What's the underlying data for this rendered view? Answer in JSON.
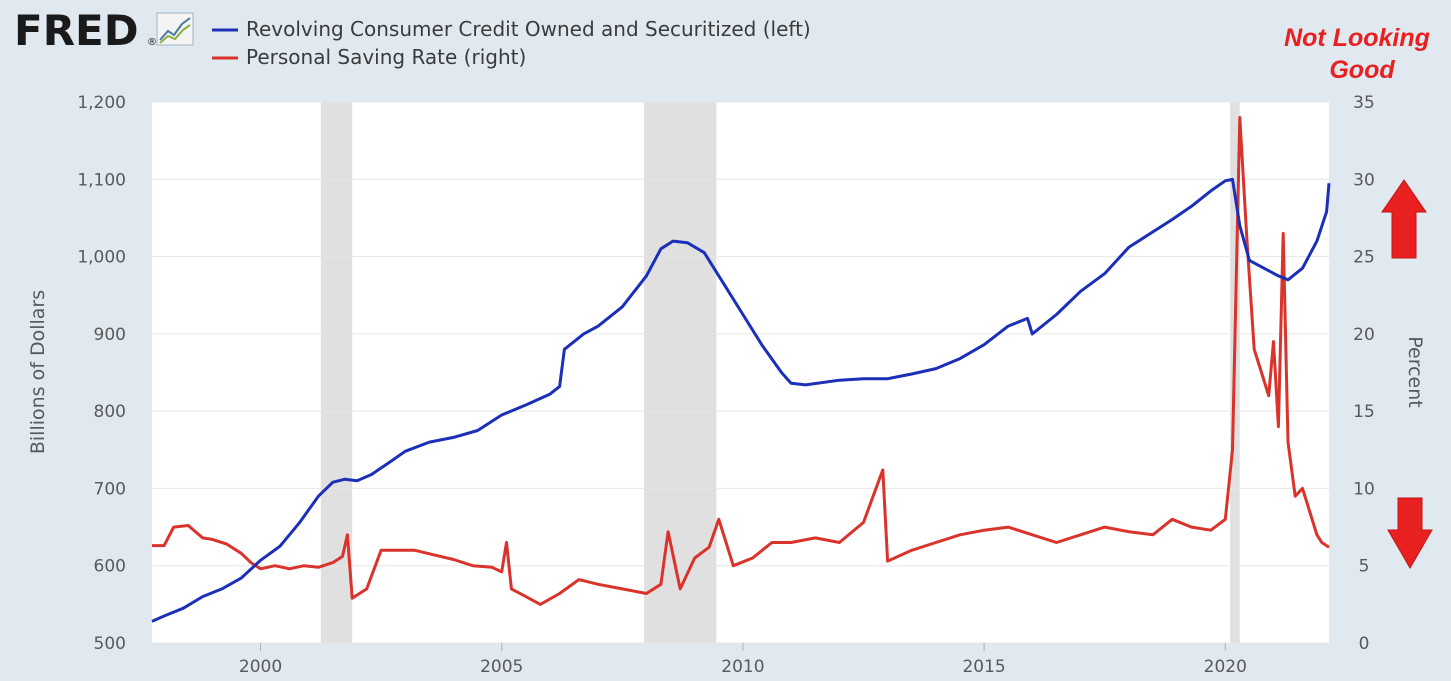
{
  "logo": {
    "text": "FRED",
    "trademark": "®",
    "icon": "trend-line-icon"
  },
  "annotation": {
    "line1": "Not Looking",
    "line2": "Good",
    "up_arrow": "arrow-up-icon",
    "down_arrow": "arrow-down-icon",
    "color": "#e8201f"
  },
  "colors": {
    "background": "#e1e9f0",
    "plot": "#ffffff",
    "grid": "#e6e6e6",
    "recession": "#e0e0e0",
    "blue": "#1b2fb8",
    "red": "#d9332c"
  },
  "chart_data": {
    "type": "line",
    "x_range": [
      1997.75,
      2022.15
    ],
    "x_ticks": [
      {
        "value": 2000,
        "label": "2000"
      },
      {
        "value": 2005,
        "label": "2005"
      },
      {
        "value": 2010,
        "label": "2010"
      },
      {
        "value": 2015,
        "label": "2015"
      },
      {
        "value": 2020,
        "label": "2020"
      }
    ],
    "left_axis": {
      "label": "Billions of Dollars",
      "range": [
        500,
        1200
      ],
      "ticks": [
        "500",
        "600",
        "700",
        "800",
        "900",
        "1,000",
        "1,100",
        "1,200"
      ],
      "tick_values": [
        500,
        600,
        700,
        800,
        900,
        1000,
        1100,
        1200
      ]
    },
    "right_axis": {
      "label": "Percent",
      "range": [
        0,
        35
      ],
      "ticks": [
        "0",
        "5",
        "10",
        "15",
        "20",
        "25",
        "30",
        "35"
      ],
      "tick_values": [
        0,
        5,
        10,
        15,
        20,
        25,
        30,
        35
      ]
    },
    "recessions": [
      [
        2001.25,
        2001.9
      ],
      [
        2007.95,
        2009.45
      ],
      [
        2020.1,
        2020.3
      ]
    ],
    "series": [
      {
        "name": "Revolving Consumer Credit Owned and Securitized (left)",
        "axis": "left",
        "color": "#1b2fb8",
        "points": [
          [
            1997.75,
            528
          ],
          [
            1998.0,
            535
          ],
          [
            1998.4,
            545
          ],
          [
            1998.8,
            560
          ],
          [
            1999.2,
            570
          ],
          [
            1999.6,
            584
          ],
          [
            2000.0,
            607
          ],
          [
            2000.4,
            625
          ],
          [
            2000.8,
            655
          ],
          [
            2001.2,
            690
          ],
          [
            2001.5,
            708
          ],
          [
            2001.75,
            712
          ],
          [
            2002.0,
            710
          ],
          [
            2002.3,
            718
          ],
          [
            2002.7,
            735
          ],
          [
            2003.0,
            748
          ],
          [
            2003.5,
            760
          ],
          [
            2004.0,
            766
          ],
          [
            2004.5,
            775
          ],
          [
            2005.0,
            795
          ],
          [
            2005.5,
            808
          ],
          [
            2006.0,
            822
          ],
          [
            2006.2,
            832
          ],
          [
            2006.3,
            880
          ],
          [
            2006.7,
            900
          ],
          [
            2007.0,
            910
          ],
          [
            2007.5,
            935
          ],
          [
            2008.0,
            975
          ],
          [
            2008.3,
            1010
          ],
          [
            2008.55,
            1020
          ],
          [
            2008.85,
            1018
          ],
          [
            2009.2,
            1005
          ],
          [
            2009.6,
            965
          ],
          [
            2010.0,
            925
          ],
          [
            2010.4,
            885
          ],
          [
            2010.8,
            850
          ],
          [
            2011.0,
            836
          ],
          [
            2011.3,
            834
          ],
          [
            2012.0,
            840
          ],
          [
            2012.5,
            842
          ],
          [
            2013.0,
            842
          ],
          [
            2013.5,
            848
          ],
          [
            2014.0,
            855
          ],
          [
            2014.5,
            868
          ],
          [
            2015.0,
            886
          ],
          [
            2015.5,
            910
          ],
          [
            2015.9,
            920
          ],
          [
            2016.0,
            900
          ],
          [
            2016.5,
            925
          ],
          [
            2017.0,
            955
          ],
          [
            2017.5,
            978
          ],
          [
            2018.0,
            1012
          ],
          [
            2018.4,
            1028
          ],
          [
            2018.9,
            1048
          ],
          [
            2019.3,
            1065
          ],
          [
            2019.7,
            1085
          ],
          [
            2020.0,
            1098
          ],
          [
            2020.15,
            1100
          ],
          [
            2020.3,
            1040
          ],
          [
            2020.5,
            995
          ],
          [
            2020.8,
            985
          ],
          [
            2021.1,
            975
          ],
          [
            2021.3,
            970
          ],
          [
            2021.6,
            985
          ],
          [
            2021.9,
            1020
          ],
          [
            2022.1,
            1058
          ],
          [
            2022.15,
            1095
          ]
        ]
      },
      {
        "name": "Personal Saving Rate (right)",
        "axis": "right",
        "color": "#d9332c",
        "points": [
          [
            1997.75,
            6.3
          ],
          [
            1998.0,
            6.3
          ],
          [
            1998.2,
            7.5
          ],
          [
            1998.5,
            7.6
          ],
          [
            1998.8,
            6.8
          ],
          [
            1999.0,
            6.7
          ],
          [
            1999.3,
            6.4
          ],
          [
            1999.6,
            5.8
          ],
          [
            1999.8,
            5.2
          ],
          [
            2000.0,
            4.8
          ],
          [
            2000.3,
            5.0
          ],
          [
            2000.6,
            4.8
          ],
          [
            2000.9,
            5.0
          ],
          [
            2001.2,
            4.9
          ],
          [
            2001.5,
            5.2
          ],
          [
            2001.7,
            5.6
          ],
          [
            2001.8,
            7.0
          ],
          [
            2001.9,
            2.9
          ],
          [
            2002.2,
            3.5
          ],
          [
            2002.5,
            6.0
          ],
          [
            2002.8,
            6.0
          ],
          [
            2003.2,
            6.0
          ],
          [
            2003.6,
            5.7
          ],
          [
            2004.0,
            5.4
          ],
          [
            2004.4,
            5.0
          ],
          [
            2004.8,
            4.9
          ],
          [
            2005.0,
            4.6
          ],
          [
            2005.1,
            6.5
          ],
          [
            2005.2,
            3.5
          ],
          [
            2005.5,
            3.0
          ],
          [
            2005.8,
            2.5
          ],
          [
            2006.2,
            3.2
          ],
          [
            2006.6,
            4.1
          ],
          [
            2007.0,
            3.8
          ],
          [
            2007.5,
            3.5
          ],
          [
            2008.0,
            3.2
          ],
          [
            2008.3,
            3.8
          ],
          [
            2008.45,
            7.2
          ],
          [
            2008.7,
            3.5
          ],
          [
            2009.0,
            5.5
          ],
          [
            2009.3,
            6.2
          ],
          [
            2009.5,
            8.0
          ],
          [
            2009.8,
            5.0
          ],
          [
            2010.2,
            5.5
          ],
          [
            2010.6,
            6.5
          ],
          [
            2011.0,
            6.5
          ],
          [
            2011.5,
            6.8
          ],
          [
            2012.0,
            6.5
          ],
          [
            2012.5,
            7.8
          ],
          [
            2012.9,
            11.2
          ],
          [
            2013.0,
            5.3
          ],
          [
            2013.5,
            6.0
          ],
          [
            2014.0,
            6.5
          ],
          [
            2014.5,
            7.0
          ],
          [
            2015.0,
            7.3
          ],
          [
            2015.5,
            7.5
          ],
          [
            2016.0,
            7.0
          ],
          [
            2016.5,
            6.5
          ],
          [
            2017.0,
            7.0
          ],
          [
            2017.5,
            7.5
          ],
          [
            2018.0,
            7.2
          ],
          [
            2018.5,
            7.0
          ],
          [
            2018.9,
            8.0
          ],
          [
            2019.3,
            7.5
          ],
          [
            2019.7,
            7.3
          ],
          [
            2020.0,
            8.0
          ],
          [
            2020.15,
            12.5
          ],
          [
            2020.3,
            34.0
          ],
          [
            2020.45,
            26.0
          ],
          [
            2020.6,
            19.0
          ],
          [
            2020.75,
            17.5
          ],
          [
            2020.9,
            16.0
          ],
          [
            2021.0,
            19.5
          ],
          [
            2021.1,
            14.0
          ],
          [
            2021.2,
            26.5
          ],
          [
            2021.3,
            13.0
          ],
          [
            2021.45,
            9.5
          ],
          [
            2021.6,
            10.0
          ],
          [
            2021.75,
            8.5
          ],
          [
            2021.9,
            7.0
          ],
          [
            2022.0,
            6.5
          ],
          [
            2022.15,
            6.2
          ]
        ]
      }
    ]
  }
}
